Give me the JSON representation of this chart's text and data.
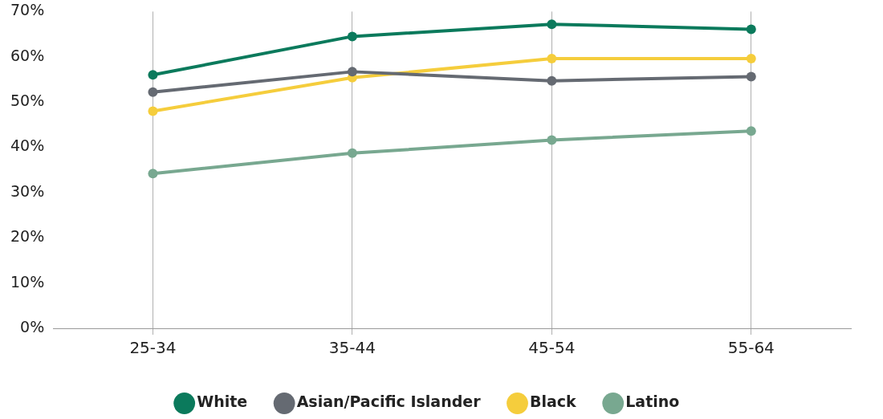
{
  "chart_data": {
    "type": "line",
    "categories": [
      "25-34",
      "35-44",
      "45-54",
      "55-64"
    ],
    "series": [
      {
        "name": "White",
        "color": "#0b7a5c",
        "values": [
          56,
          64.5,
          67.2,
          66.1
        ]
      },
      {
        "name": "Asian/Pacific Islander",
        "color": "#656a72",
        "values": [
          52.2,
          56.7,
          54.7,
          55.6
        ]
      },
      {
        "name": "Black",
        "color": "#f5cd3c",
        "values": [
          48,
          55.4,
          59.6,
          59.6
        ]
      },
      {
        "name": "Latino",
        "color": "#78a890",
        "values": [
          34.2,
          38.7,
          41.6,
          43.6
        ]
      }
    ],
    "ylim": [
      0,
      70
    ],
    "yticks": [
      {
        "value": 0,
        "label": "0%"
      },
      {
        "value": 10,
        "label": "10%"
      },
      {
        "value": 20,
        "label": "20%"
      },
      {
        "value": 30,
        "label": "30%"
      },
      {
        "value": 40,
        "label": "40%"
      },
      {
        "value": 50,
        "label": "50%"
      },
      {
        "value": 60,
        "label": "60%"
      },
      {
        "value": 70,
        "label": "70%"
      }
    ],
    "grid": "x",
    "legend": "bottom",
    "marker": "circle",
    "line_style": "solid"
  }
}
